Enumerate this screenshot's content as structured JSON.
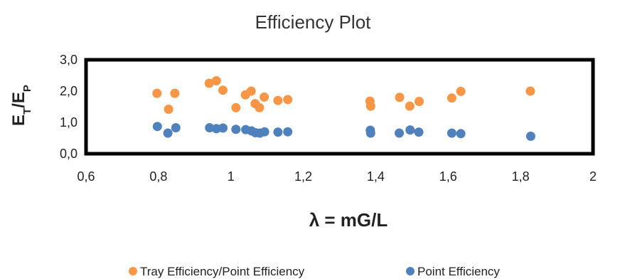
{
  "chart_data": {
    "type": "scatter",
    "title": "Efficiency Plot",
    "xlabel": "λ = mG/L",
    "ylabel_main": "E",
    "ylabel_sub1": "T",
    "ylabel_sep": "/E",
    "ylabel_sub2": "P",
    "xlim": [
      0.6,
      2.0
    ],
    "ylim": [
      0.0,
      3.0
    ],
    "xticks": [
      "0,6",
      "0,8",
      "1",
      "1,2",
      "1,4",
      "1,6",
      "1,8",
      "2"
    ],
    "yticks": [
      "0,0",
      "1,0",
      "2,0",
      "3,0"
    ],
    "grid": false,
    "legend_position": "bottom",
    "series": [
      {
        "name": "Tray Efficiency/Point Efficiency",
        "color": "#F79646",
        "points": [
          [
            0.796,
            1.93
          ],
          [
            0.828,
            1.42
          ],
          [
            0.845,
            1.93
          ],
          [
            0.94,
            2.25
          ],
          [
            0.96,
            2.33
          ],
          [
            0.978,
            2.03
          ],
          [
            1.014,
            1.47
          ],
          [
            1.04,
            1.88
          ],
          [
            1.056,
            2.0
          ],
          [
            1.067,
            1.6
          ],
          [
            1.079,
            1.47
          ],
          [
            1.092,
            1.81
          ],
          [
            1.13,
            1.7
          ],
          [
            1.157,
            1.73
          ],
          [
            1.384,
            1.68
          ],
          [
            1.386,
            1.52
          ],
          [
            1.466,
            1.8
          ],
          [
            1.494,
            1.52
          ],
          [
            1.52,
            1.67
          ],
          [
            1.61,
            1.78
          ],
          [
            1.635,
            1.99
          ],
          [
            1.827,
            2.0
          ]
        ]
      },
      {
        "name": "Point Efficiency",
        "color": "#4F81BD",
        "points": [
          [
            0.797,
            0.87
          ],
          [
            0.826,
            0.66
          ],
          [
            0.848,
            0.83
          ],
          [
            0.941,
            0.83
          ],
          [
            0.96,
            0.8
          ],
          [
            0.978,
            0.82
          ],
          [
            1.014,
            0.78
          ],
          [
            1.041,
            0.77
          ],
          [
            1.057,
            0.73
          ],
          [
            1.068,
            0.67
          ],
          [
            1.08,
            0.66
          ],
          [
            1.093,
            0.7
          ],
          [
            1.13,
            0.69
          ],
          [
            1.157,
            0.7
          ],
          [
            1.385,
            0.75
          ],
          [
            1.386,
            0.66
          ],
          [
            1.465,
            0.66
          ],
          [
            1.495,
            0.76
          ],
          [
            1.519,
            0.69
          ],
          [
            1.61,
            0.66
          ],
          [
            1.635,
            0.64
          ],
          [
            1.828,
            0.56
          ]
        ]
      }
    ]
  }
}
